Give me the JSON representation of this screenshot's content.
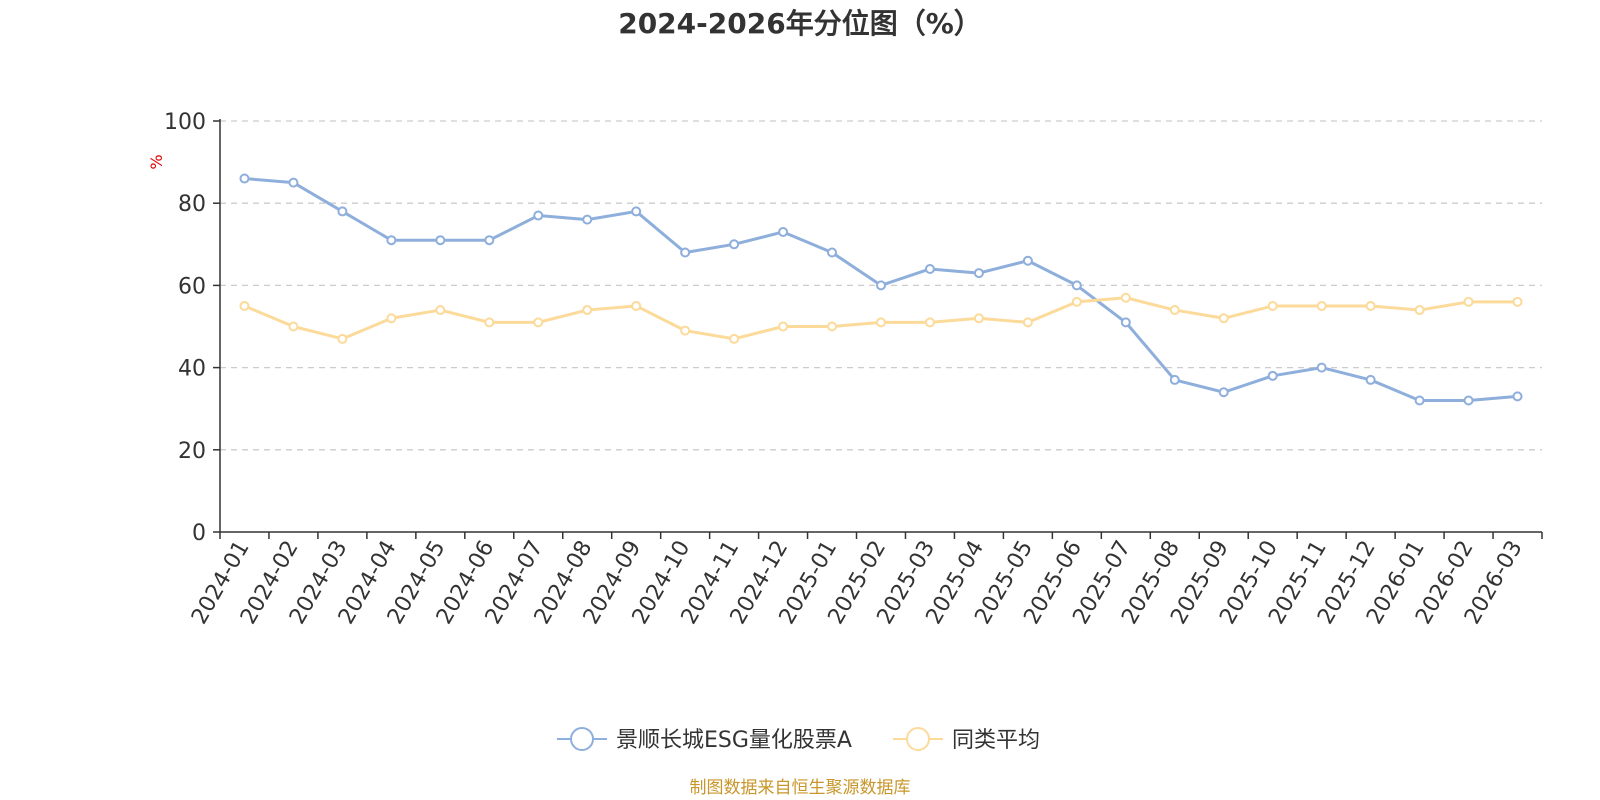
{
  "chart_data": {
    "type": "line",
    "title": "2024-2026年分位图（%）",
    "y_unit": "%",
    "ylim": [
      0,
      100
    ],
    "y_ticks": [
      0,
      20,
      40,
      60,
      80,
      100
    ],
    "grid": true,
    "legend_position": "bottom-center",
    "categories": [
      "2024-01",
      "2024-02",
      "2024-03",
      "2024-04",
      "2024-05",
      "2024-06",
      "2024-07",
      "2024-08",
      "2024-09",
      "2024-10",
      "2024-11",
      "2024-12",
      "2025-01",
      "2025-02",
      "2025-03",
      "2025-04",
      "2025-05",
      "2025-06",
      "2025-07",
      "2025-08",
      "2025-09",
      "2025-10",
      "2025-11",
      "2025-12",
      "2026-01",
      "2026-02",
      "2026-03"
    ],
    "series": [
      {
        "name": "景顺长城ESG量化股票A",
        "color": "#8EAEDC",
        "values": [
          86,
          85,
          78,
          71,
          71,
          71,
          77,
          76,
          78,
          68,
          70,
          73,
          68,
          60,
          64,
          63,
          66,
          60,
          51,
          37,
          34,
          38,
          40,
          37,
          32,
          32,
          33
        ]
      },
      {
        "name": "同类平均",
        "color": "#FCDA9A",
        "values": [
          55,
          50,
          47,
          52,
          54,
          51,
          51,
          54,
          55,
          49,
          47,
          50,
          50,
          51,
          51,
          52,
          51,
          56,
          57,
          54,
          52,
          55,
          55,
          55,
          54,
          56,
          56
        ]
      }
    ],
    "source": "制图数据来自恒生聚源数据库"
  },
  "colors": {
    "unit": "#E00000",
    "source": "#C8962A",
    "axis": "#333333",
    "grid": "#CCCCCC"
  }
}
